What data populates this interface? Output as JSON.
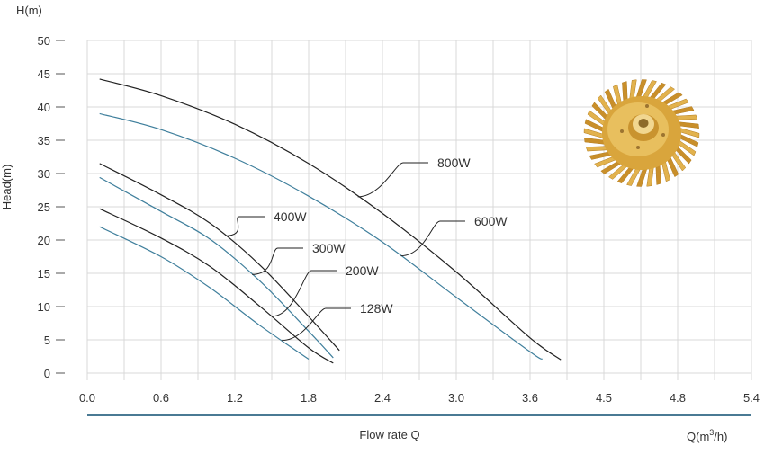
{
  "chart_data": {
    "type": "line",
    "y_axis_unit_label": "H(m)",
    "ylabel": "Head(m)",
    "xlabel": "Flow rate Q",
    "x_unit_label_prefix": "Q(m",
    "x_unit_label_sup": "3",
    "x_unit_label_suffix": "/h)",
    "y_ticks": [
      "0",
      "5",
      "10",
      "15",
      "20",
      "25",
      "30",
      "35",
      "40",
      "45",
      "50"
    ],
    "x_ticks": [
      "0.0",
      "0.6",
      "1.2",
      "1.8",
      "2.4",
      "3.0",
      "3.6",
      "4.5",
      "4.8",
      "5.4"
    ],
    "ylim": [
      0,
      50
    ],
    "grid": true,
    "colors": {
      "dark": "#222222",
      "blue": "#3f7f9c",
      "axis": "#4a7a94",
      "grid": "#d8d8d8"
    },
    "series": [
      {
        "name": "800W",
        "color": "#222222",
        "points": [
          [
            0.1,
            44.2
          ],
          [
            0.6,
            41.7
          ],
          [
            1.2,
            37.4
          ],
          [
            1.8,
            31.5
          ],
          [
            2.4,
            24.0
          ],
          [
            3.0,
            15.2
          ],
          [
            3.6,
            5.3
          ],
          [
            3.85,
            2.0
          ]
        ]
      },
      {
        "name": "600W",
        "color": "#3f7f9c",
        "points": [
          [
            0.1,
            39.0
          ],
          [
            0.6,
            36.6
          ],
          [
            1.2,
            32.3
          ],
          [
            1.8,
            26.6
          ],
          [
            2.4,
            19.7
          ],
          [
            3.0,
            11.4
          ],
          [
            3.6,
            3.2
          ],
          [
            3.7,
            2.1
          ]
        ]
      },
      {
        "name": "400W",
        "color": "#222222",
        "points": [
          [
            0.1,
            31.5
          ],
          [
            0.6,
            26.8
          ],
          [
            1.0,
            22.5
          ],
          [
            1.4,
            16.3
          ],
          [
            1.8,
            8.5
          ],
          [
            2.05,
            3.4
          ]
        ]
      },
      {
        "name": "300W",
        "color": "#3f7f9c",
        "points": [
          [
            0.1,
            29.4
          ],
          [
            0.6,
            24.3
          ],
          [
            1.0,
            20.1
          ],
          [
            1.4,
            13.9
          ],
          [
            1.8,
            6.3
          ],
          [
            2.0,
            2.3
          ]
        ]
      },
      {
        "name": "200W",
        "color": "#222222",
        "points": [
          [
            0.1,
            24.7
          ],
          [
            0.6,
            20.3
          ],
          [
            1.0,
            16.0
          ],
          [
            1.4,
            10.1
          ],
          [
            1.8,
            3.8
          ],
          [
            2.0,
            1.5
          ]
        ]
      },
      {
        "name": "128W",
        "color": "#3f7f9c",
        "points": [
          [
            0.1,
            22.0
          ],
          [
            0.6,
            17.5
          ],
          [
            1.0,
            12.8
          ],
          [
            1.4,
            7.2
          ],
          [
            1.8,
            2.1
          ]
        ]
      }
    ],
    "annotations": [
      {
        "text": "800W",
        "series": "800W",
        "at_x": 2.2
      },
      {
        "text": "600W",
        "series": "600W",
        "at_x": 2.55
      },
      {
        "text": "400W",
        "series": "400W",
        "at_x": 1.12
      },
      {
        "text": "300W",
        "series": "300W",
        "at_x": 1.34
      },
      {
        "text": "200W",
        "series": "200W",
        "at_x": 1.5
      },
      {
        "text": "128W",
        "series": "128W",
        "at_x": 1.58
      }
    ]
  },
  "image": {
    "subject": "impeller-photo"
  }
}
